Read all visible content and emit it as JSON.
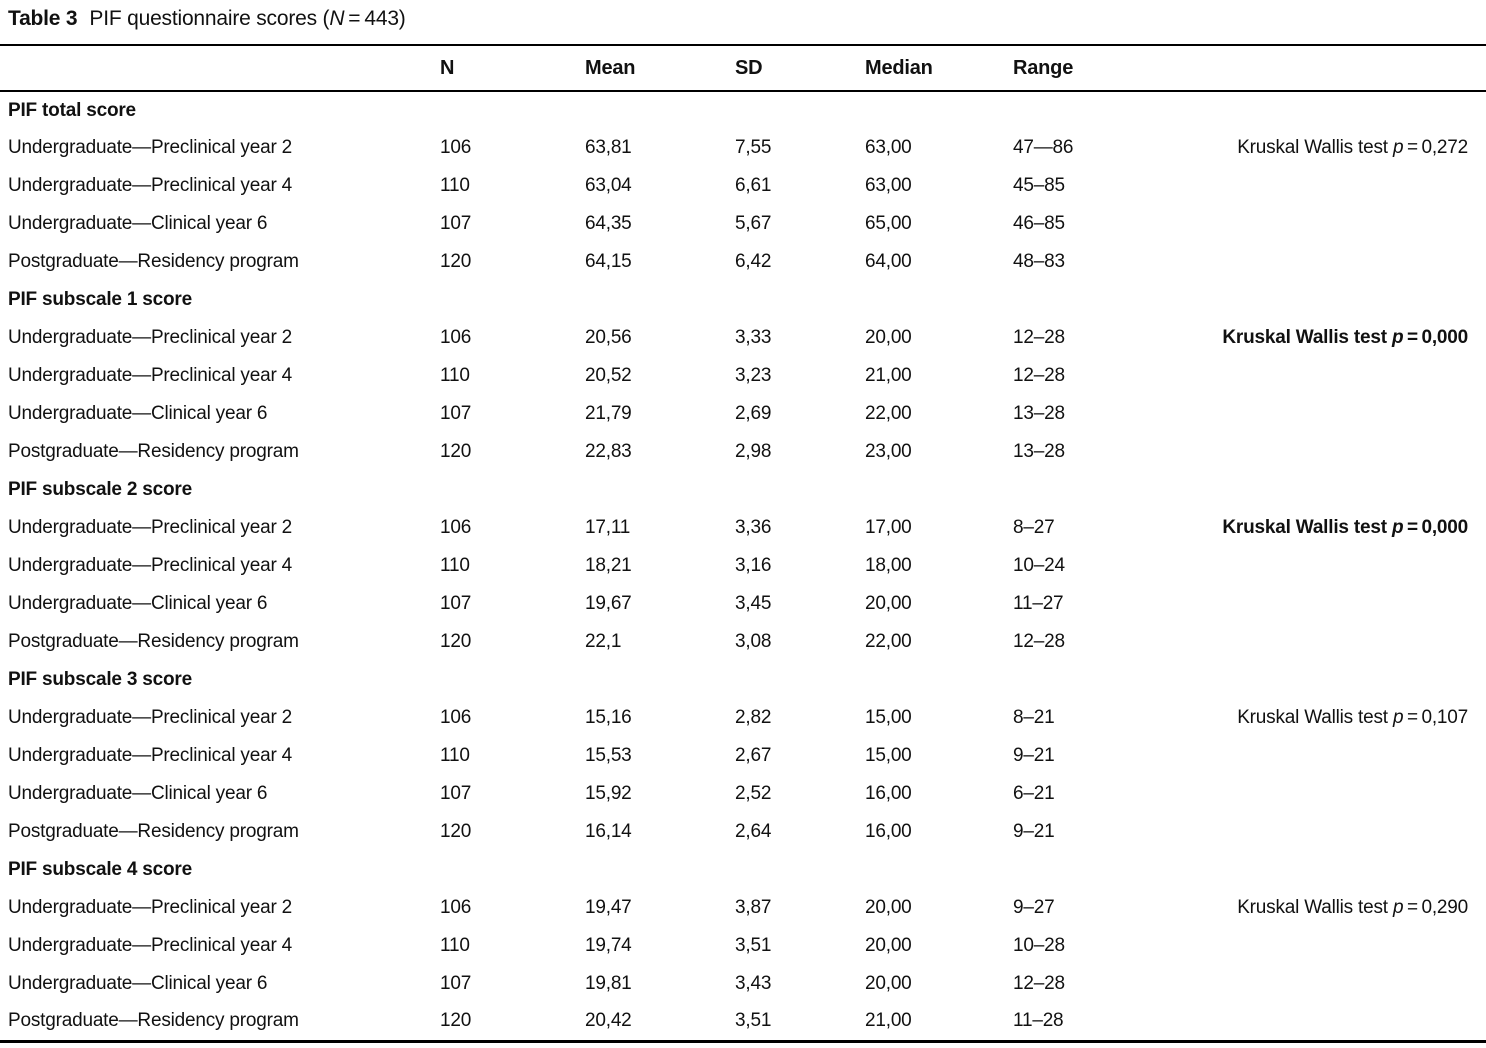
{
  "caption": {
    "label": "Table 3",
    "pre": "PIF questionnaire scores (",
    "n_symbol": "N",
    "post": " = 443)"
  },
  "columns": {
    "label": "",
    "n": "N",
    "mean": "Mean",
    "sd": "SD",
    "median": "Median",
    "range": "Range",
    "test": ""
  },
  "sections": [
    {
      "label": "PIF total score",
      "test": {
        "prefix": "Kruskal Wallis test ",
        "p": "p",
        "rest": " = 0,272",
        "bold": false
      },
      "rows": [
        {
          "label": "Undergraduate—Preclinical year 2",
          "n": "106",
          "mean": "63,81",
          "sd": "7,55",
          "median": "63,00",
          "range": "47—86"
        },
        {
          "label": "Undergraduate—Preclinical year 4",
          "n": "110",
          "mean": "63,04",
          "sd": "6,61",
          "median": "63,00",
          "range": "45–85"
        },
        {
          "label": "Undergraduate—Clinical year 6",
          "n": "107",
          "mean": "64,35",
          "sd": "5,67",
          "median": "65,00",
          "range": "46–85"
        },
        {
          "label": "Postgraduate—Residency program",
          "n": "120",
          "mean": "64,15",
          "sd": "6,42",
          "median": "64,00",
          "range": "48–83"
        }
      ]
    },
    {
      "label": "PIF subscale 1 score",
      "test": {
        "prefix": "Kruskal Wallis test ",
        "p": "p",
        "rest": " = 0,000",
        "bold": true
      },
      "rows": [
        {
          "label": "Undergraduate—Preclinical year 2",
          "n": "106",
          "mean": "20,56",
          "sd": "3,33",
          "median": "20,00",
          "range": "12–28"
        },
        {
          "label": "Undergraduate—Preclinical year 4",
          "n": "110",
          "mean": "20,52",
          "sd": "3,23",
          "median": "21,00",
          "range": "12–28"
        },
        {
          "label": "Undergraduate—Clinical year 6",
          "n": "107",
          "mean": "21,79",
          "sd": "2,69",
          "median": "22,00",
          "range": "13–28"
        },
        {
          "label": "Postgraduate—Residency program",
          "n": "120",
          "mean": "22,83",
          "sd": "2,98",
          "median": "23,00",
          "range": "13–28"
        }
      ]
    },
    {
      "label": "PIF subscale 2 score",
      "test": {
        "prefix": "Kruskal Wallis test ",
        "p": "p",
        "rest": " = 0,000",
        "bold": true
      },
      "rows": [
        {
          "label": "Undergraduate—Preclinical year 2",
          "n": "106",
          "mean": "17,11",
          "sd": "3,36",
          "median": "17,00",
          "range": "8–27"
        },
        {
          "label": "Undergraduate—Preclinical year 4",
          "n": "110",
          "mean": "18,21",
          "sd": "3,16",
          "median": "18,00",
          "range": "10–24"
        },
        {
          "label": "Undergraduate—Clinical year 6",
          "n": "107",
          "mean": "19,67",
          "sd": "3,45",
          "median": "20,00",
          "range": "11–27"
        },
        {
          "label": "Postgraduate—Residency program",
          "n": "120",
          "mean": "22,1",
          "sd": "3,08",
          "median": "22,00",
          "range": "12–28"
        }
      ]
    },
    {
      "label": "PIF subscale 3 score",
      "test": {
        "prefix": "Kruskal Wallis test ",
        "p": "p",
        "rest": " = 0,107",
        "bold": false
      },
      "rows": [
        {
          "label": "Undergraduate—Preclinical year 2",
          "n": "106",
          "mean": "15,16",
          "sd": "2,82",
          "median": "15,00",
          "range": "8–21"
        },
        {
          "label": "Undergraduate—Preclinical year 4",
          "n": "110",
          "mean": "15,53",
          "sd": "2,67",
          "median": "15,00",
          "range": "9–21"
        },
        {
          "label": "Undergraduate—Clinical year 6",
          "n": "107",
          "mean": "15,92",
          "sd": "2,52",
          "median": "16,00",
          "range": "6–21"
        },
        {
          "label": "Postgraduate—Residency program",
          "n": "120",
          "mean": "16,14",
          "sd": "2,64",
          "median": "16,00",
          "range": "9–21"
        }
      ]
    },
    {
      "label": "PIF subscale 4 score",
      "test": {
        "prefix": "Kruskal Wallis test ",
        "p": "p",
        "rest": " = 0,290",
        "bold": false
      },
      "rows": [
        {
          "label": "Undergraduate—Preclinical year 2",
          "n": "106",
          "mean": "19,47",
          "sd": "3,87",
          "median": "20,00",
          "range": "9–27"
        },
        {
          "label": "Undergraduate—Preclinical year 4",
          "n": "110",
          "mean": "19,74",
          "sd": "3,51",
          "median": "20,00",
          "range": "10–28"
        },
        {
          "label": "Undergraduate—Clinical year 6",
          "n": "107",
          "mean": "19,81",
          "sd": "3,43",
          "median": "20,00",
          "range": "12–28"
        },
        {
          "label": "Postgraduate—Residency program",
          "n": "120",
          "mean": "20,42",
          "sd": "3,51",
          "median": "21,00",
          "range": "11–28"
        }
      ]
    }
  ]
}
